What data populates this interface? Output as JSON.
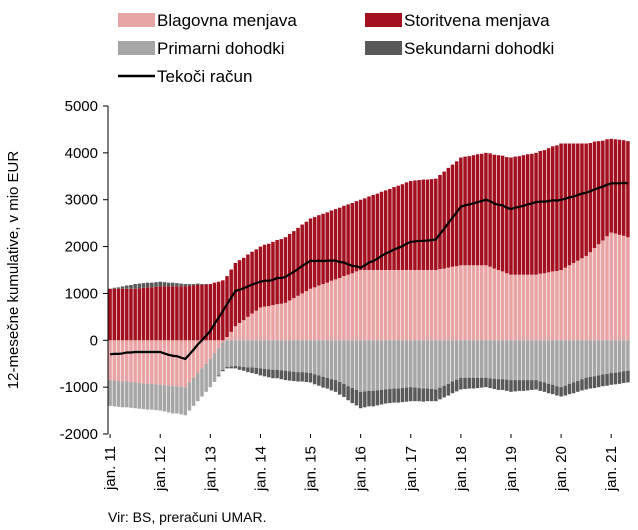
{
  "chart_data": {
    "type": "bar",
    "stacked": true,
    "y_label": "12-mesečne kumulative, v mio EUR",
    "source": "Vir: BS, preračuni UMAR.",
    "ylim": [
      -2000,
      5000
    ],
    "yticks": [
      -2000,
      -1000,
      0,
      1000,
      2000,
      3000,
      4000,
      5000
    ],
    "categories": [
      "jan. 11",
      null,
      null,
      null,
      null,
      null,
      null,
      null,
      null,
      null,
      null,
      null,
      "jan. 12",
      null,
      null,
      null,
      null,
      null,
      null,
      null,
      null,
      null,
      null,
      null,
      "jan. 13",
      null,
      null,
      null,
      null,
      null,
      null,
      null,
      null,
      null,
      null,
      null,
      "jan. 14",
      null,
      null,
      null,
      null,
      null,
      null,
      null,
      null,
      null,
      null,
      null,
      "jan. 15",
      null,
      null,
      null,
      null,
      null,
      null,
      null,
      null,
      null,
      null,
      null,
      "jan. 16",
      null,
      null,
      null,
      null,
      null,
      null,
      null,
      null,
      null,
      null,
      null,
      "jan. 17",
      null,
      null,
      null,
      null,
      null,
      null,
      null,
      null,
      null,
      null,
      null,
      "jan. 18",
      null,
      null,
      null,
      null,
      null,
      null,
      null,
      null,
      null,
      null,
      null,
      "jan. 19",
      null,
      null,
      null,
      null,
      null,
      null,
      null,
      null,
      null,
      null,
      null,
      "jan. 20",
      null,
      null,
      null,
      null,
      null,
      null,
      null,
      null,
      null,
      null,
      null,
      "jan. 21",
      null,
      null,
      null,
      null
    ],
    "series": [
      {
        "name": "Blagovna menjava",
        "color": "#e8a3a5",
        "values": [
          -850,
          -860,
          -870,
          -880,
          -880,
          -890,
          -900,
          -910,
          -920,
          -930,
          -930,
          -940,
          -950,
          -960,
          -970,
          -980,
          -980,
          -990,
          -1000,
          -900,
          -800,
          -700,
          -600,
          -500,
          -400,
          -280,
          -170,
          -50,
          70,
          180,
          300,
          370,
          430,
          500,
          570,
          630,
          700,
          720,
          730,
          750,
          770,
          780,
          800,
          850,
          900,
          950,
          1000,
          1050,
          1100,
          1130,
          1170,
          1200,
          1230,
          1270,
          1300,
          1330,
          1370,
          1400,
          1430,
          1470,
          1500,
          1500,
          1500,
          1500,
          1500,
          1500,
          1500,
          1500,
          1500,
          1500,
          1500,
          1500,
          1500,
          1500,
          1500,
          1500,
          1500,
          1500,
          1500,
          1520,
          1530,
          1550,
          1570,
          1580,
          1600,
          1600,
          1600,
          1600,
          1600,
          1600,
          1600,
          1570,
          1530,
          1500,
          1470,
          1430,
          1400,
          1400,
          1400,
          1400,
          1400,
          1400,
          1400,
          1420,
          1430,
          1450,
          1470,
          1480,
          1500,
          1550,
          1600,
          1650,
          1700,
          1750,
          1800,
          1880,
          1970,
          2050,
          2130,
          2220,
          2300,
          2280,
          2250,
          2230,
          2200
        ]
      },
      {
        "name": "Storitvena menjava",
        "color": "#a3101f",
        "values": [
          1100,
          1100,
          1100,
          1100,
          1100,
          1100,
          1100,
          1110,
          1120,
          1130,
          1130,
          1140,
          1150,
          1150,
          1150,
          1150,
          1150,
          1150,
          1150,
          1160,
          1170,
          1180,
          1180,
          1190,
          1200,
          1230,
          1250,
          1280,
          1300,
          1330,
          1350,
          1340,
          1330,
          1330,
          1320,
          1310,
          1300,
          1320,
          1330,
          1350,
          1370,
          1380,
          1400,
          1420,
          1430,
          1450,
          1470,
          1480,
          1500,
          1500,
          1500,
          1500,
          1500,
          1500,
          1500,
          1500,
          1500,
          1500,
          1500,
          1500,
          1500,
          1530,
          1570,
          1600,
          1630,
          1670,
          1700,
          1730,
          1770,
          1800,
          1830,
          1870,
          1900,
          1910,
          1920,
          1930,
          1930,
          1940,
          1950,
          2010,
          2070,
          2130,
          2180,
          2240,
          2300,
          2320,
          2330,
          2350,
          2370,
          2380,
          2400,
          2420,
          2430,
          2450,
          2470,
          2480,
          2500,
          2520,
          2530,
          2550,
          2570,
          2580,
          2600,
          2620,
          2630,
          2650,
          2670,
          2680,
          2700,
          2650,
          2600,
          2550,
          2500,
          2450,
          2400,
          2330,
          2270,
          2200,
          2130,
          2070,
          2000,
          2010,
          2030,
          2040,
          2050
        ]
      },
      {
        "name": "Primarni dohodki",
        "color": "#a6a6a6",
        "values": [
          -550,
          -550,
          -550,
          -550,
          -550,
          -550,
          -550,
          -550,
          -550,
          -550,
          -550,
          -550,
          -550,
          -560,
          -570,
          -580,
          -580,
          -590,
          -600,
          -600,
          -600,
          -600,
          -600,
          -600,
          -600,
          -590,
          -580,
          -580,
          -570,
          -560,
          -550,
          -560,
          -570,
          -580,
          -580,
          -590,
          -600,
          -610,
          -620,
          -630,
          -630,
          -640,
          -650,
          -660,
          -670,
          -680,
          -680,
          -690,
          -700,
          -730,
          -750,
          -780,
          -800,
          -830,
          -850,
          -890,
          -930,
          -980,
          -1020,
          -1060,
          -1100,
          -1090,
          -1080,
          -1080,
          -1070,
          -1060,
          -1050,
          -1040,
          -1030,
          -1030,
          -1020,
          -1010,
          -1000,
          -1010,
          -1020,
          -1030,
          -1030,
          -1040,
          -1050,
          -1010,
          -970,
          -930,
          -880,
          -840,
          -800,
          -800,
          -800,
          -800,
          -800,
          -800,
          -800,
          -810,
          -820,
          -830,
          -830,
          -840,
          -850,
          -850,
          -850,
          -850,
          -850,
          -850,
          -850,
          -880,
          -900,
          -930,
          -950,
          -980,
          -1000,
          -970,
          -930,
          -900,
          -870,
          -830,
          -800,
          -780,
          -770,
          -750,
          -730,
          -720,
          -700,
          -690,
          -680,
          -660,
          -650
        ]
      },
      {
        "name": "Sekundarni dohodki",
        "color": "#595959",
        "values": [
          0,
          20,
          30,
          50,
          70,
          80,
          100,
          100,
          100,
          100,
          100,
          100,
          100,
          90,
          80,
          80,
          70,
          60,
          50,
          40,
          30,
          30,
          20,
          10,
          0,
          -10,
          -20,
          -30,
          -30,
          -40,
          -50,
          -70,
          -80,
          -100,
          -120,
          -130,
          -150,
          -160,
          -170,
          -180,
          -180,
          -190,
          -200,
          -200,
          -200,
          -200,
          -200,
          -200,
          -200,
          -210,
          -220,
          -230,
          -230,
          -240,
          -250,
          -270,
          -280,
          -300,
          -320,
          -330,
          -350,
          -340,
          -330,
          -330,
          -320,
          -310,
          -300,
          -300,
          -300,
          -300,
          -300,
          -300,
          -300,
          -290,
          -280,
          -280,
          -270,
          -260,
          -250,
          -250,
          -250,
          -250,
          -250,
          -250,
          -250,
          -240,
          -230,
          -230,
          -220,
          -210,
          -200,
          -210,
          -220,
          -230,
          -230,
          -240,
          -250,
          -240,
          -230,
          -230,
          -220,
          -210,
          -200,
          -200,
          -200,
          -200,
          -200,
          -200,
          -200,
          -210,
          -220,
          -230,
          -230,
          -240,
          -250,
          -250,
          -250,
          -250,
          -250,
          -250,
          -250,
          -250,
          -250,
          -250,
          -250
        ]
      },
      {
        "name": "Tekoči račun",
        "type": "line",
        "color": "#000000",
        "values": [
          -300,
          -290,
          -290,
          -280,
          -260,
          -260,
          -250,
          -250,
          -250,
          -250,
          -250,
          -250,
          -250,
          -280,
          -310,
          -330,
          -340,
          -370,
          -400,
          -300,
          -200,
          -90,
          0,
          100,
          200,
          350,
          480,
          620,
          770,
          910,
          1050,
          1080,
          1110,
          1150,
          1190,
          1220,
          1250,
          1270,
          1270,
          1290,
          1330,
          1330,
          1350,
          1410,
          1460,
          1520,
          1590,
          1640,
          1700,
          1690,
          1700,
          1690,
          1700,
          1700,
          1700,
          1670,
          1660,
          1620,
          1590,
          1580,
          1550,
          1600,
          1660,
          1690,
          1740,
          1800,
          1850,
          1890,
          1940,
          1970,
          2010,
          2060,
          2100,
          2110,
          2120,
          2120,
          2130,
          2140,
          2150,
          2270,
          2380,
          2500,
          2620,
          2730,
          2850,
          2880,
          2900,
          2920,
          2950,
          2970,
          3000,
          2970,
          2920,
          2890,
          2880,
          2830,
          2800,
          2830,
          2850,
          2870,
          2900,
          2920,
          2950,
          2960,
          2960,
          2970,
          2990,
          2980,
          3000,
          3020,
          3050,
          3070,
          3100,
          3130,
          3150,
          3180,
          3220,
          3250,
          3280,
          3320,
          3350,
          3350,
          3350,
          3360,
          3350
        ]
      }
    ]
  }
}
